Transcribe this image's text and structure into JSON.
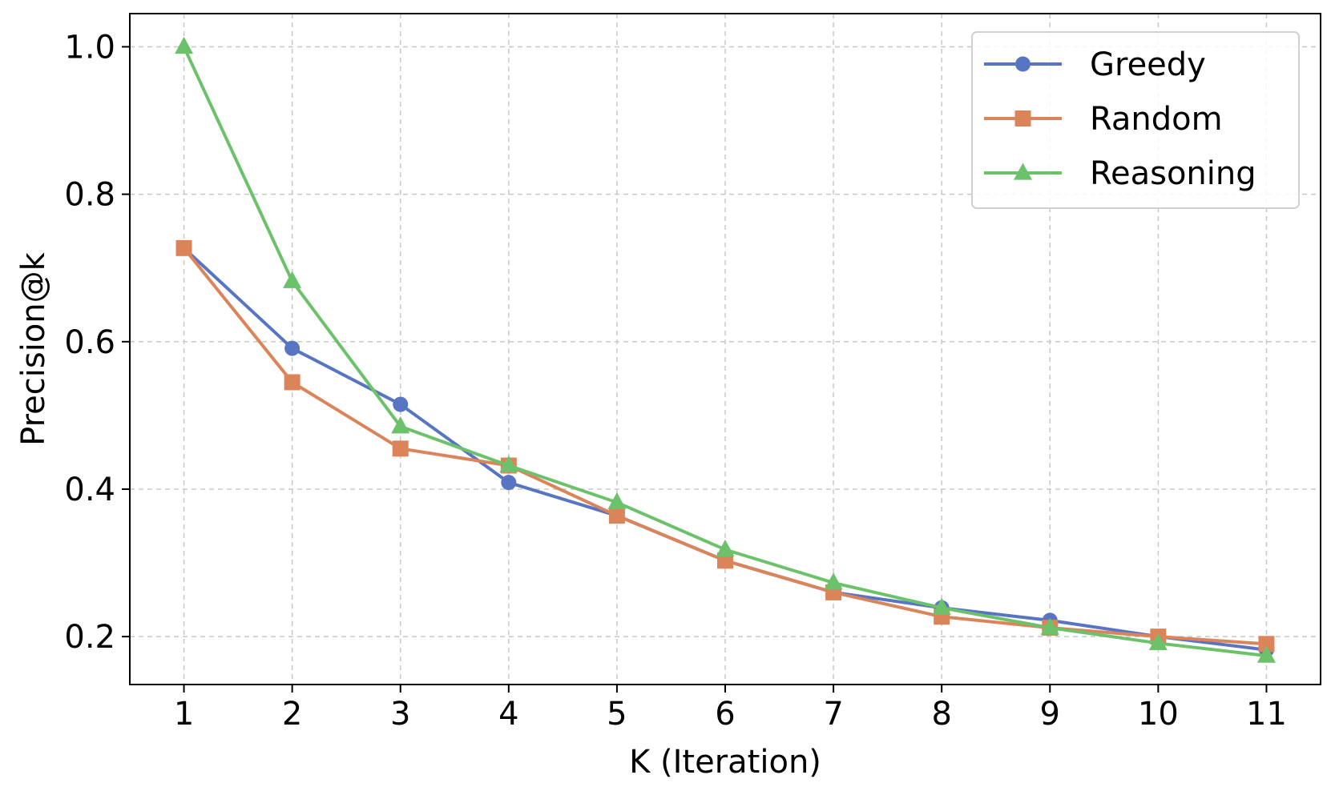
{
  "chart_data": {
    "type": "line",
    "xlabel": "K (Iteration)",
    "ylabel": "Precision@k",
    "x": [
      1,
      2,
      3,
      4,
      5,
      6,
      7,
      8,
      9,
      10,
      11
    ],
    "xlim": [
      0.5,
      11.5
    ],
    "ylim": [
      0.135,
      1.045
    ],
    "yticks": [
      0.2,
      0.4,
      0.6,
      0.8,
      1.0
    ],
    "ytick_labels": [
      "0.2",
      "0.4",
      "0.6",
      "0.8",
      "1.0"
    ],
    "xtick_labels": [
      "1",
      "2",
      "3",
      "4",
      "5",
      "6",
      "7",
      "8",
      "9",
      "10",
      "11"
    ],
    "grid": true,
    "legend_position": "top-right",
    "series": [
      {
        "name": "Greedy",
        "color": "#5875c4",
        "marker": "circle",
        "values": [
          0.727,
          0.591,
          0.515,
          0.409,
          0.364,
          0.303,
          0.26,
          0.239,
          0.222,
          0.2,
          0.182
        ]
      },
      {
        "name": "Random",
        "color": "#dc8459",
        "marker": "square",
        "values": [
          0.727,
          0.545,
          0.455,
          0.432,
          0.364,
          0.303,
          0.26,
          0.227,
          0.212,
          0.2,
          0.19
        ]
      },
      {
        "name": "Reasoning",
        "color": "#6cc26b",
        "marker": "triangle",
        "values": [
          1.0,
          0.682,
          0.485,
          0.432,
          0.382,
          0.318,
          0.273,
          0.239,
          0.212,
          0.191,
          0.174
        ]
      }
    ]
  }
}
